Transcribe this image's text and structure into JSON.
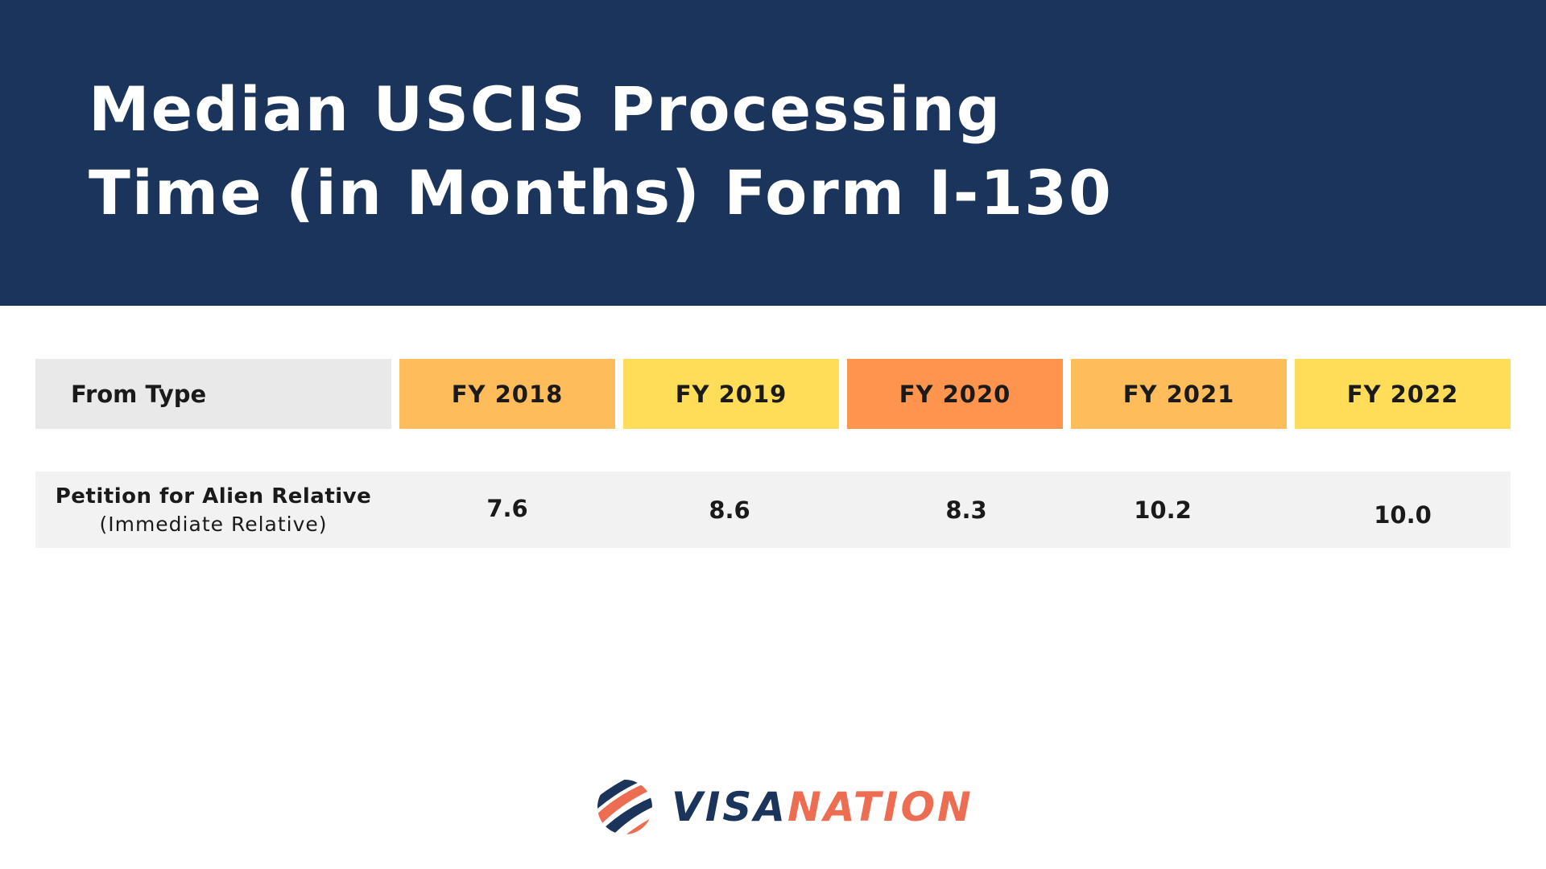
{
  "header": {
    "title_line1": "Median USCIS Processing",
    "title_line2": "Time (in Months) Form I-130"
  },
  "colors": {
    "header_bg": "#1b345c",
    "fy2018": "#ffbc5a",
    "fy2019": "#ffdd59",
    "fy2020": "#ff944f",
    "fy2021": "#ffbc5a",
    "fy2022": "#ffdd59",
    "brand_navy": "#1b345c",
    "brand_orange": "#ec6d51"
  },
  "chart_data": {
    "type": "table",
    "title": "Median USCIS Processing Time (in Months) Form I-130",
    "row_header": "From Type",
    "columns": [
      "FY 2018",
      "FY 2019",
      "FY 2020",
      "FY 2021",
      "FY 2022"
    ],
    "rows": [
      {
        "label": "Petition for Alien Relative",
        "sublabel": "(Immediate Relative)",
        "values": [
          "7.6",
          "8.6",
          "8.3",
          "10.2",
          "10.0"
        ]
      }
    ]
  },
  "logo": {
    "icon": "globe-stripes-icon",
    "text_part1": "VISA",
    "text_part2": "NATION"
  }
}
